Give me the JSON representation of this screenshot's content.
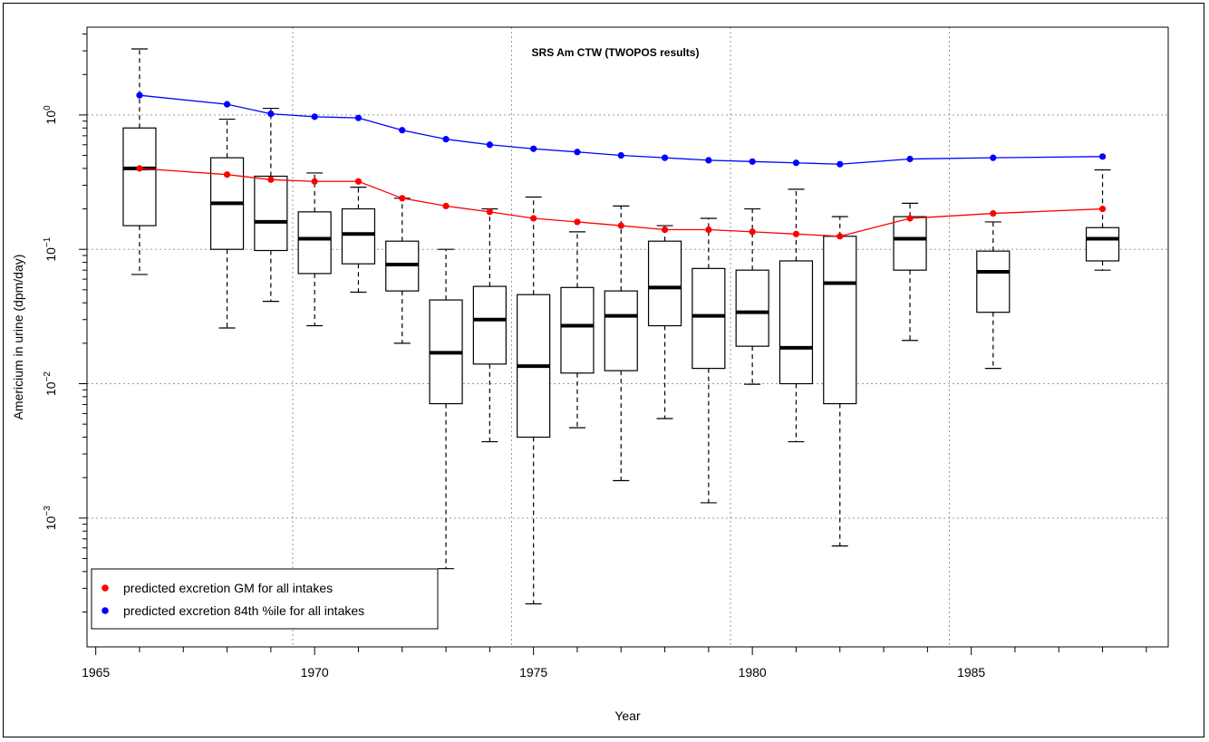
{
  "chart_data": {
    "type": "box",
    "title": "SRS Am CTW (TWOPOS results)",
    "xlabel": "Year",
    "ylabel": "Americium in urine (dpm/day)",
    "xlim": [
      1964.8,
      1989.5
    ],
    "ylim": [
      0.00011,
      4.5
    ],
    "y_scale": "log",
    "grid": true,
    "x_ticks": [
      1965,
      1970,
      1975,
      1980,
      1985
    ],
    "x_tick_labels": [
      "1965",
      "1970",
      "1975",
      "1980",
      "1985"
    ],
    "x_grid": [
      1969.5,
      1974.5,
      1979.5,
      1984.5
    ],
    "y_ticks": [
      0.001,
      0.01,
      0.1,
      1
    ],
    "y_tick_labels": [
      {
        "base": "10",
        "exp": "−3"
      },
      {
        "base": "10",
        "exp": "−2"
      },
      {
        "base": "10",
        "exp": "−1"
      },
      {
        "base": "10",
        "exp": "0"
      }
    ],
    "legend_position": "bottom-left",
    "boxes": [
      {
        "x": 1966.0,
        "wlo": 0.065,
        "q1": 0.15,
        "median": 0.4,
        "q3": 0.8,
        "whi": 3.1
      },
      {
        "x": 1968.0,
        "wlo": 0.026,
        "q1": 0.1,
        "median": 0.22,
        "q3": 0.48,
        "whi": 0.93
      },
      {
        "x": 1969.0,
        "wlo": 0.041,
        "q1": 0.098,
        "median": 0.16,
        "q3": 0.35,
        "whi": 1.12
      },
      {
        "x": 1970.0,
        "wlo": 0.027,
        "q1": 0.066,
        "median": 0.12,
        "q3": 0.19,
        "whi": 0.37
      },
      {
        "x": 1971.0,
        "wlo": 0.048,
        "q1": 0.078,
        "median": 0.13,
        "q3": 0.2,
        "whi": 0.29
      },
      {
        "x": 1972.0,
        "wlo": 0.02,
        "q1": 0.049,
        "median": 0.077,
        "q3": 0.115,
        "whi": 0.24
      },
      {
        "x": 1973.0,
        "wlo": 0.00042,
        "q1": 0.0071,
        "median": 0.017,
        "q3": 0.042,
        "whi": 0.1
      },
      {
        "x": 1974.0,
        "wlo": 0.0037,
        "q1": 0.014,
        "median": 0.03,
        "q3": 0.053,
        "whi": 0.2
      },
      {
        "x": 1975.0,
        "wlo": 0.00023,
        "q1": 0.004,
        "median": 0.0135,
        "q3": 0.046,
        "whi": 0.245
      },
      {
        "x": 1976.0,
        "wlo": 0.0047,
        "q1": 0.012,
        "median": 0.027,
        "q3": 0.052,
        "whi": 0.135
      },
      {
        "x": 1977.0,
        "wlo": 0.0019,
        "q1": 0.0125,
        "median": 0.032,
        "q3": 0.049,
        "whi": 0.21
      },
      {
        "x": 1978.0,
        "wlo": 0.0055,
        "q1": 0.027,
        "median": 0.052,
        "q3": 0.115,
        "whi": 0.15
      },
      {
        "x": 1979.0,
        "wlo": 0.0013,
        "q1": 0.013,
        "median": 0.032,
        "q3": 0.072,
        "whi": 0.17
      },
      {
        "x": 1980.0,
        "wlo": 0.0099,
        "q1": 0.019,
        "median": 0.034,
        "q3": 0.07,
        "whi": 0.2
      },
      {
        "x": 1981.0,
        "wlo": 0.0037,
        "q1": 0.01,
        "median": 0.0185,
        "q3": 0.082,
        "whi": 0.28
      },
      {
        "x": 1982.0,
        "wlo": 0.00062,
        "q1": 0.0071,
        "median": 0.056,
        "q3": 0.125,
        "whi": 0.175
      },
      {
        "x": 1983.6,
        "wlo": 0.021,
        "q1": 0.07,
        "median": 0.12,
        "q3": 0.175,
        "whi": 0.22
      },
      {
        "x": 1985.5,
        "wlo": 0.013,
        "q1": 0.034,
        "median": 0.068,
        "q3": 0.097,
        "whi": 0.16
      },
      {
        "x": 1988.0,
        "wlo": 0.07,
        "q1": 0.082,
        "median": 0.12,
        "q3": 0.145,
        "whi": 0.39
      }
    ],
    "series": [
      {
        "name": "predicted excretion GM for all intakes",
        "color": "#ff0000",
        "x": [
          1966.0,
          1968.0,
          1969.0,
          1970.0,
          1971.0,
          1972.0,
          1973.0,
          1974.0,
          1975.0,
          1976.0,
          1977.0,
          1978.0,
          1979.0,
          1980.0,
          1981.0,
          1982.0,
          1983.6,
          1985.5,
          1988.0
        ],
        "y": [
          0.4,
          0.36,
          0.33,
          0.32,
          0.32,
          0.24,
          0.21,
          0.19,
          0.17,
          0.16,
          0.15,
          0.14,
          0.14,
          0.135,
          0.13,
          0.125,
          0.17,
          0.185,
          0.2
        ]
      },
      {
        "name": "predicted excretion 84th %ile for all intakes",
        "color": "#0000ff",
        "x": [
          1966.0,
          1968.0,
          1969.0,
          1970.0,
          1971.0,
          1972.0,
          1973.0,
          1974.0,
          1975.0,
          1976.0,
          1977.0,
          1978.0,
          1979.0,
          1980.0,
          1981.0,
          1982.0,
          1983.6,
          1985.5,
          1988.0
        ],
        "y": [
          1.4,
          1.2,
          1.02,
          0.97,
          0.95,
          0.77,
          0.66,
          0.6,
          0.56,
          0.53,
          0.5,
          0.48,
          0.46,
          0.45,
          0.44,
          0.43,
          0.47,
          0.48,
          0.49
        ]
      }
    ]
  }
}
